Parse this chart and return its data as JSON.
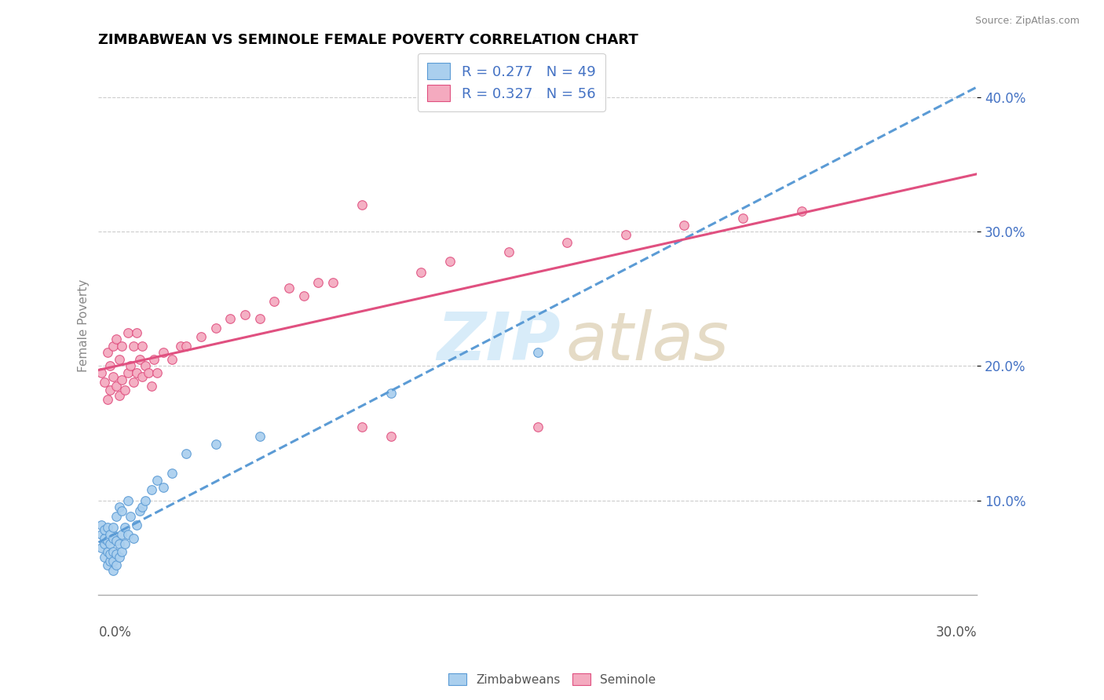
{
  "title": "ZIMBABWEAN VS SEMINOLE FEMALE POVERTY CORRELATION CHART",
  "source": "Source: ZipAtlas.com",
  "ylabel": "Female Poverty",
  "xlim": [
    0.0,
    0.3
  ],
  "ylim": [
    0.03,
    0.43
  ],
  "ytick_values": [
    0.1,
    0.2,
    0.3,
    0.4
  ],
  "ytick_labels": [
    "10.0%",
    "20.0%",
    "30.0%",
    "40.0%"
  ],
  "xtick_left_label": "0.0%",
  "xtick_right_label": "30.0%",
  "legend_r_zim": "R = 0.277",
  "legend_n_zim": "N = 49",
  "legend_r_sem": "R = 0.327",
  "legend_n_sem": "N = 56",
  "zim_face_color": "#AACFEE",
  "zim_edge_color": "#5B9BD5",
  "sem_face_color": "#F4AABF",
  "sem_edge_color": "#E05080",
  "trendline_zim_color": "#5B9BD5",
  "trendline_sem_color": "#E05080",
  "legend_text_color": "#4472C4",
  "watermark_zip_color": "#BEE0F5",
  "watermark_atlas_color": "#D4C4A0",
  "zim_x": [
    0.001,
    0.001,
    0.001,
    0.002,
    0.002,
    0.002,
    0.002,
    0.003,
    0.003,
    0.003,
    0.003,
    0.004,
    0.004,
    0.004,
    0.004,
    0.005,
    0.005,
    0.005,
    0.005,
    0.005,
    0.006,
    0.006,
    0.006,
    0.006,
    0.007,
    0.007,
    0.007,
    0.008,
    0.008,
    0.008,
    0.009,
    0.009,
    0.01,
    0.01,
    0.011,
    0.012,
    0.013,
    0.014,
    0.015,
    0.016,
    0.018,
    0.02,
    0.022,
    0.025,
    0.03,
    0.04,
    0.055,
    0.1,
    0.15
  ],
  "zim_y": [
    0.065,
    0.075,
    0.082,
    0.058,
    0.068,
    0.072,
    0.078,
    0.052,
    0.062,
    0.07,
    0.08,
    0.055,
    0.06,
    0.068,
    0.075,
    0.048,
    0.055,
    0.062,
    0.072,
    0.08,
    0.052,
    0.06,
    0.07,
    0.088,
    0.058,
    0.068,
    0.095,
    0.062,
    0.075,
    0.092,
    0.068,
    0.08,
    0.075,
    0.1,
    0.088,
    0.072,
    0.082,
    0.092,
    0.095,
    0.1,
    0.108,
    0.115,
    0.11,
    0.12,
    0.135,
    0.142,
    0.148,
    0.18,
    0.21
  ],
  "sem_x": [
    0.001,
    0.002,
    0.003,
    0.003,
    0.004,
    0.004,
    0.005,
    0.005,
    0.006,
    0.006,
    0.007,
    0.007,
    0.008,
    0.008,
    0.009,
    0.01,
    0.01,
    0.011,
    0.012,
    0.012,
    0.013,
    0.013,
    0.014,
    0.015,
    0.015,
    0.016,
    0.017,
    0.018,
    0.019,
    0.02,
    0.022,
    0.025,
    0.028,
    0.03,
    0.035,
    0.04,
    0.045,
    0.05,
    0.055,
    0.06,
    0.065,
    0.07,
    0.075,
    0.08,
    0.09,
    0.1,
    0.11,
    0.12,
    0.14,
    0.16,
    0.18,
    0.2,
    0.22,
    0.24,
    0.09,
    0.15
  ],
  "sem_y": [
    0.195,
    0.188,
    0.175,
    0.21,
    0.182,
    0.2,
    0.192,
    0.215,
    0.185,
    0.22,
    0.178,
    0.205,
    0.19,
    0.215,
    0.182,
    0.195,
    0.225,
    0.2,
    0.188,
    0.215,
    0.195,
    0.225,
    0.205,
    0.192,
    0.215,
    0.2,
    0.195,
    0.185,
    0.205,
    0.195,
    0.21,
    0.205,
    0.215,
    0.215,
    0.222,
    0.228,
    0.235,
    0.238,
    0.235,
    0.248,
    0.258,
    0.252,
    0.262,
    0.262,
    0.155,
    0.148,
    0.27,
    0.278,
    0.285,
    0.292,
    0.298,
    0.305,
    0.31,
    0.315,
    0.32,
    0.155
  ]
}
